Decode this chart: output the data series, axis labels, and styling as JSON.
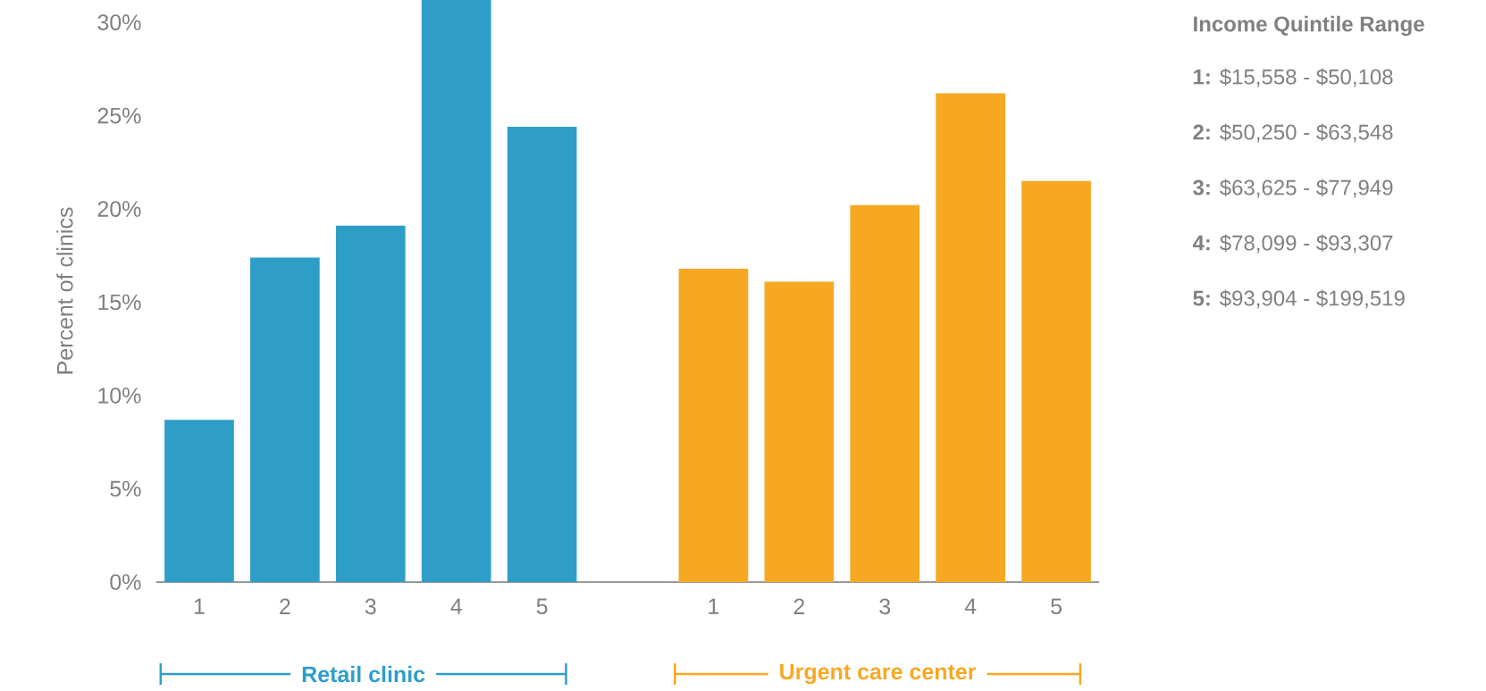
{
  "chart_data": {
    "type": "bar",
    "ylabel": "Percent of clinics",
    "legend_title": "Income Quintile Range",
    "categories": [
      "1",
      "2",
      "3",
      "4",
      "5",
      null,
      "1",
      "2",
      "3",
      "4",
      "5"
    ],
    "series": [
      {
        "name": "Retail clinic",
        "color": "#2e9ec9",
        "values": [
          8.7,
          17.4,
          19.1,
          31.2,
          24.4,
          null,
          null,
          null,
          null,
          null,
          null
        ]
      },
      {
        "name": "Urgent care center",
        "color": "#f7a823",
        "values": [
          null,
          null,
          null,
          null,
          null,
          null,
          16.8,
          16.1,
          20.2,
          26.2,
          21.5
        ]
      }
    ],
    "ylim": [
      0,
      31.2
    ],
    "yticks": [
      {
        "value": 0,
        "label": "0%"
      },
      {
        "value": 5,
        "label": "5%"
      },
      {
        "value": 10,
        "label": "10%"
      },
      {
        "value": 15,
        "label": "15%"
      },
      {
        "value": 20,
        "label": "20%"
      },
      {
        "value": 25,
        "label": "25%"
      },
      {
        "value": 30,
        "label": "30%"
      }
    ],
    "annotations": [
      "**1:** $15,558 - $50,108",
      "**2:** $50,250 - $63,548",
      "**3:** $63,625 - $77,949",
      "**4:** $78,099 - $93,307",
      "**5:** $93,904 - $199,519"
    ],
    "grid": false,
    "legend": false
  }
}
